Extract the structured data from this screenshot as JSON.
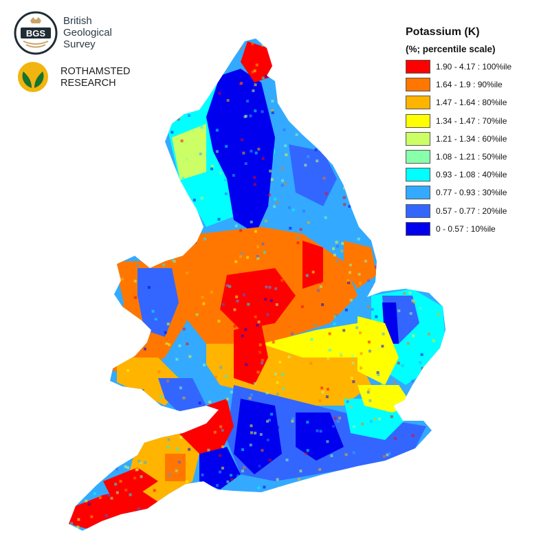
{
  "logos": {
    "bgs": {
      "seal_text": "BGS",
      "name_lines": [
        "British",
        "Geological",
        "Survey"
      ]
    },
    "rothamsted": {
      "name_lines": [
        "ROTHAMSTED",
        "RESEARCH"
      ]
    }
  },
  "legend": {
    "title": "Potassium (K)",
    "subtitle": "(%; percentile scale)",
    "items": [
      {
        "label": "1.90 - 4.17 : 100%ile",
        "color": "#ff0000"
      },
      {
        "label": "1.64 - 1.9 : 90%ile",
        "color": "#ff7700"
      },
      {
        "label": "1.47 - 1.64 : 80%ile",
        "color": "#ffb400"
      },
      {
        "label": "1.34 - 1.47 : 70%ile",
        "color": "#ffff00"
      },
      {
        "label": "1.21 - 1.34 : 60%ile",
        "color": "#ccff66"
      },
      {
        "label": "1.08 - 1.21 : 50%ile",
        "color": "#88ffaa"
      },
      {
        "label": "0.93 - 1.08 : 40%ile",
        "color": "#00ffff"
      },
      {
        "label": "0.77 - 0.93 : 30%ile",
        "color": "#33aaff"
      },
      {
        "label": "0.57 - 0.77 : 20%ile",
        "color": "#3366ff"
      },
      {
        "label": "0 - 0.57 : 10%ile",
        "color": "#0000ee"
      }
    ]
  }
}
